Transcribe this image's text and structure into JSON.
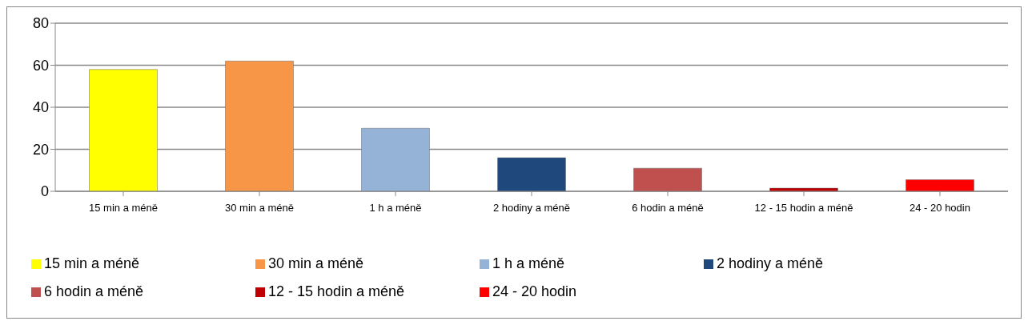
{
  "chart_data": {
    "type": "bar",
    "categories": [
      "15 min a méně",
      "30 min a méně",
      "1 h a méně",
      "2 hodiny a méně",
      "6 hodin a méně",
      "12 - 15 hodin a méně",
      "24 - 20 hodin"
    ],
    "series": [
      {
        "name": "15 min a méně",
        "color": "#ffff00",
        "values": [
          58,
          null,
          null,
          null,
          null,
          null,
          null
        ]
      },
      {
        "name": "30 min a méně",
        "color": "#f79646",
        "values": [
          null,
          62,
          null,
          null,
          null,
          null,
          null
        ]
      },
      {
        "name": "1 h a méně",
        "color": "#95b3d7",
        "values": [
          null,
          null,
          30,
          null,
          null,
          null,
          null
        ]
      },
      {
        "name": "2 hodiny a méně",
        "color": "#1f497d",
        "values": [
          null,
          null,
          null,
          16,
          null,
          null,
          null
        ]
      },
      {
        "name": "6 hodin a méně",
        "color": "#c0504d",
        "values": [
          null,
          null,
          null,
          null,
          11,
          null,
          null
        ]
      },
      {
        "name": "12 - 15 hodin a méně",
        "color": "#c00000",
        "values": [
          null,
          null,
          null,
          null,
          null,
          1.5,
          null
        ]
      },
      {
        "name": "24 - 20 hodin",
        "color": "#ff0000",
        "values": [
          null,
          null,
          null,
          null,
          null,
          null,
          5.5
        ]
      }
    ],
    "ylim": [
      0,
      80
    ],
    "yticks": [
      0,
      20,
      40,
      60,
      80
    ],
    "grid": "y",
    "legend": "bottom"
  }
}
